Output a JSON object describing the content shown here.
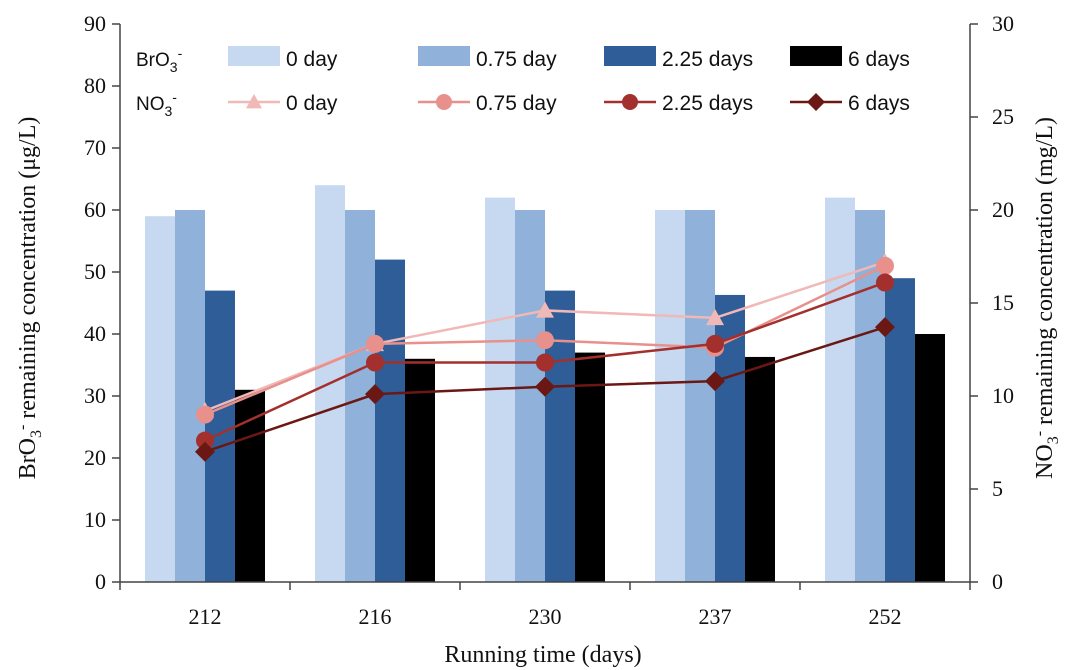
{
  "chart_data": {
    "type": "bar",
    "categories": [
      "212",
      "216",
      "230",
      "237",
      "252"
    ],
    "xlabel": "Running time (days)",
    "ylabel_left": "BrO3- remaining concentration (μg/L)",
    "ylabel_right": "NO3- remaining concentration (mg/L)",
    "ylim_left": [
      0,
      90
    ],
    "ylim_right": [
      0,
      30
    ],
    "yticks_left": [
      "0",
      "10",
      "20",
      "30",
      "40",
      "50",
      "60",
      "70",
      "80",
      "90"
    ],
    "yticks_right": [
      "0",
      "5",
      "10",
      "15",
      "20",
      "25",
      "30"
    ],
    "legend": {
      "bro3_prefix": "BrO",
      "no3_prefix": "NO",
      "sub3": "3",
      "sup_minus": "-",
      "placement": "top"
    },
    "bar_series": [
      {
        "name": "0 day",
        "color": "#c6d9f0",
        "values": [
          59,
          64,
          62,
          60,
          62
        ]
      },
      {
        "name": "0.75 day",
        "color": "#8fb1da",
        "values": [
          60,
          60,
          60,
          60,
          60
        ]
      },
      {
        "name": "2.25 days",
        "color": "#2f5d97",
        "values": [
          47,
          52,
          47,
          46.3,
          49
        ]
      },
      {
        "name": "6 days",
        "color": "#000000",
        "values": [
          31,
          36,
          37,
          36.3,
          40
        ]
      }
    ],
    "line_series": [
      {
        "name": "0 day",
        "color": "#f0b8b6",
        "marker": "triangle",
        "values": [
          9.2,
          12.8,
          14.6,
          14.2,
          17.2
        ]
      },
      {
        "name": "0.75 day",
        "color": "#e7908c",
        "marker": "circle",
        "values": [
          9.0,
          12.8,
          13.0,
          12.6,
          17.0
        ]
      },
      {
        "name": "2.25 days",
        "color": "#a3302c",
        "marker": "circle",
        "values": [
          7.6,
          11.8,
          11.8,
          12.8,
          16.1
        ]
      },
      {
        "name": "6 days",
        "color": "#6b1814",
        "marker": "diamond",
        "values": [
          7.0,
          10.1,
          10.5,
          10.8,
          13.7
        ]
      }
    ]
  }
}
